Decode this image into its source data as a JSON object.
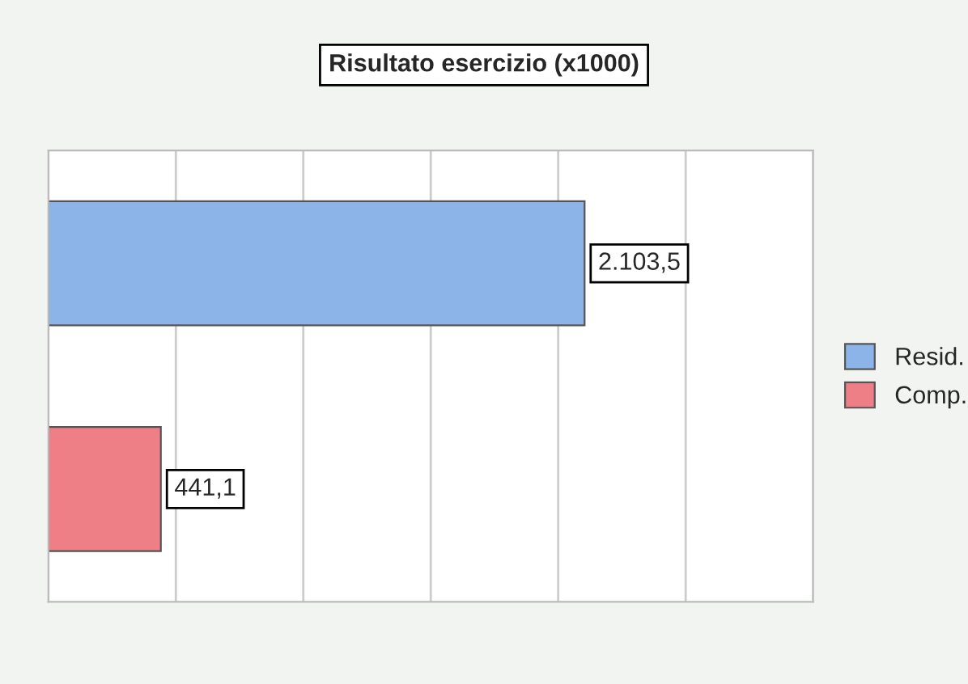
{
  "chart_data": {
    "type": "bar",
    "orientation": "horizontal",
    "title": "Risultato esercizio (x1000)",
    "categories": [
      null,
      null
    ],
    "series": [
      {
        "name": "Resid.",
        "color": "#8db4e8",
        "values": [
          2103.5,
          null
        ],
        "value_labels": [
          "2.103,5",
          null
        ]
      },
      {
        "name": "Comp.",
        "color": "#ef7f86",
        "values": [
          null,
          441.1
        ],
        "value_labels": [
          null,
          "441,1"
        ]
      }
    ],
    "xlim": [
      0,
      3000
    ],
    "xticks": [
      {
        "value": 0,
        "label": null
      },
      {
        "value": 500,
        "label": null
      },
      {
        "value": 1000,
        "label": null
      },
      {
        "value": 1500,
        "label": null
      },
      {
        "value": 2000,
        "label": null
      },
      {
        "value": 2500,
        "label": null
      },
      {
        "value": 3000,
        "label": null
      }
    ],
    "grid": "x",
    "stacked": true,
    "legend": "right"
  }
}
